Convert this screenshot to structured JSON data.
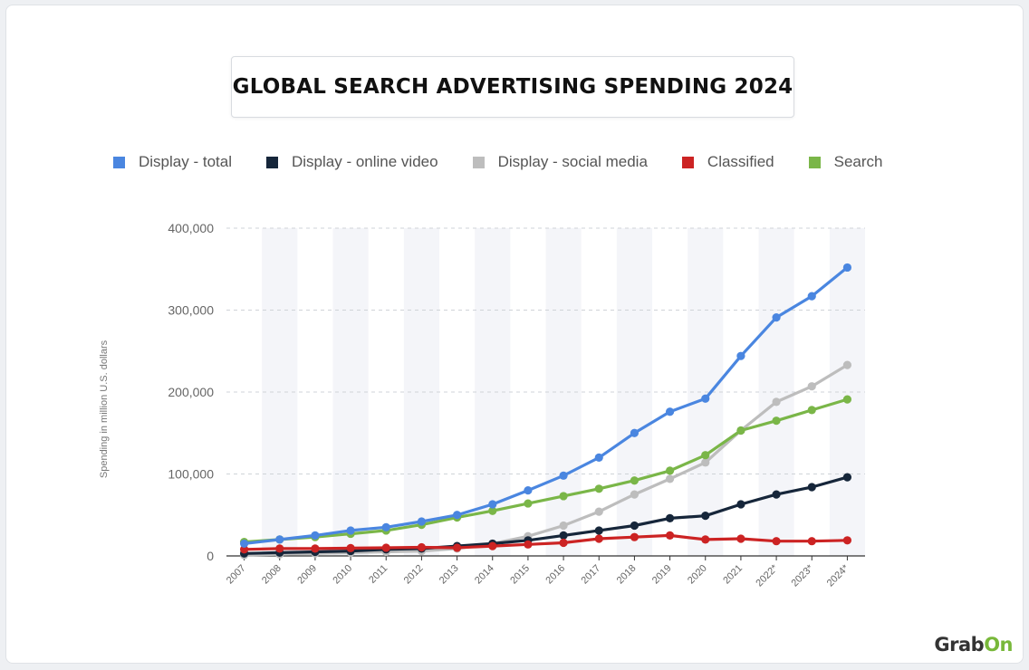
{
  "page": {
    "title": "GLOBAL SEARCH ADVERTISING SPENDING 2024"
  },
  "brand": {
    "text_main": "Grab",
    "text_accent": "On",
    "accent_color": "#78b83a"
  },
  "chart_data": {
    "type": "line",
    "title": "GLOBAL SEARCH ADVERTISING SPENDING 2024",
    "xlabel": "",
    "ylabel": "Spending in million U.S. dollars",
    "categories": [
      "2007",
      "2008",
      "2009",
      "2010",
      "2011",
      "2012",
      "2013",
      "2014",
      "2015",
      "2016",
      "2017",
      "2018",
      "2019",
      "2020",
      "2021",
      "2022*",
      "2023*",
      "2024*"
    ],
    "ylim": [
      0,
      400000
    ],
    "yticks": [
      0,
      100000,
      200000,
      300000,
      400000
    ],
    "ytick_labels": [
      "0",
      "100,000",
      "200,000",
      "300,000",
      "400,000"
    ],
    "grid": "horizontal dashed",
    "legend_position": "top",
    "series": [
      {
        "name": "Display - total",
        "color": "#4a86e0",
        "values": [
          15000,
          20000,
          25000,
          31000,
          35000,
          42000,
          50000,
          63000,
          80000,
          98000,
          120000,
          150000,
          176000,
          192000,
          244000,
          291000,
          317000,
          352000
        ]
      },
      {
        "name": "Display - online video",
        "color": "#16263a",
        "values": [
          3000,
          4000,
          5000,
          6000,
          8000,
          9000,
          12000,
          15000,
          19000,
          25000,
          31000,
          37000,
          46000,
          49000,
          63000,
          75000,
          84000,
          96000
        ]
      },
      {
        "name": "Display - social media",
        "color": "#bdbdbd",
        "values": [
          1000,
          2000,
          3000,
          4000,
          5000,
          6000,
          9000,
          15000,
          24000,
          37000,
          54000,
          75000,
          94000,
          114000,
          153000,
          188000,
          207000,
          233000
        ]
      },
      {
        "name": "Classified",
        "color": "#cc2323",
        "values": [
          8000,
          9000,
          9000,
          9500,
          10000,
          10500,
          10000,
          12000,
          14000,
          16000,
          21000,
          23000,
          25000,
          20000,
          21000,
          18000,
          18000,
          19000
        ]
      },
      {
        "name": "Search",
        "color": "#7ab648",
        "values": [
          17000,
          20000,
          23000,
          27000,
          31000,
          38000,
          47000,
          55000,
          64000,
          73000,
          82000,
          92000,
          104000,
          123000,
          153000,
          165000,
          178000,
          191000
        ]
      }
    ]
  }
}
